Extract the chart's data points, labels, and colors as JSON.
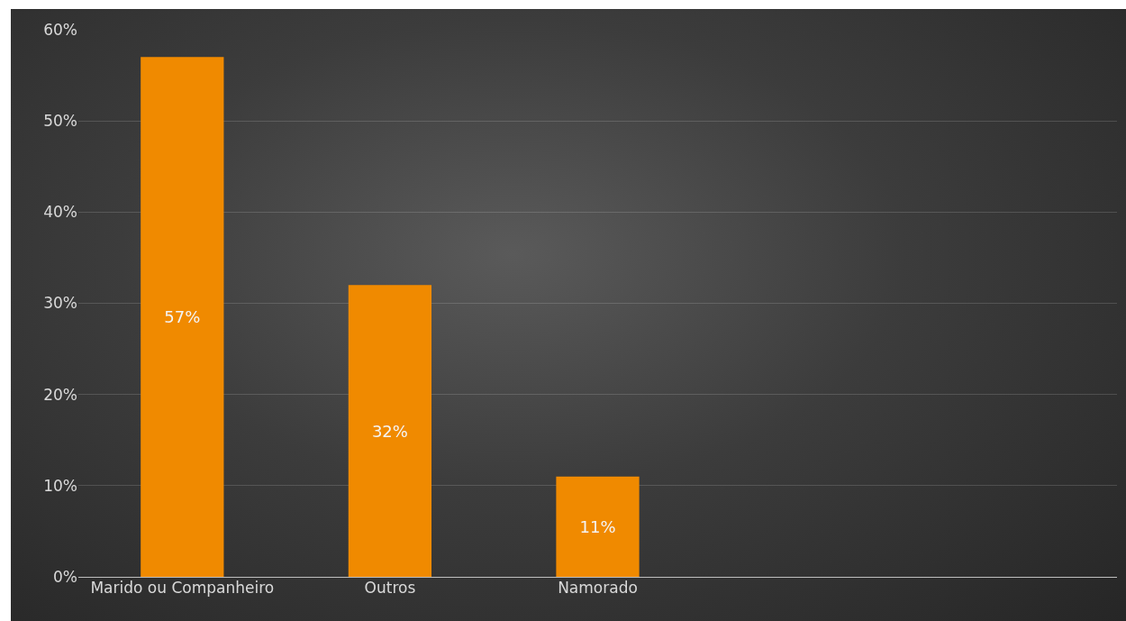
{
  "chart_data": {
    "type": "bar",
    "categories": [
      "Marido ou Companheiro",
      "Outros",
      "Namorado",
      null,
      null
    ],
    "values": [
      57,
      32,
      11,
      null,
      null
    ],
    "value_labels": [
      "57%",
      "32%",
      "11%",
      null,
      null
    ],
    "color": "#f08a00",
    "ylim": [
      0,
      60
    ],
    "yticks": [
      {
        "value": 0,
        "label": "0%"
      },
      {
        "value": 10,
        "label": "10%"
      },
      {
        "value": 20,
        "label": "20%"
      },
      {
        "value": 30,
        "label": "30%"
      },
      {
        "value": 40,
        "label": "40%"
      },
      {
        "value": 50,
        "label": "50%"
      },
      {
        "value": 60,
        "label": "60%"
      }
    ],
    "grid": "y"
  }
}
